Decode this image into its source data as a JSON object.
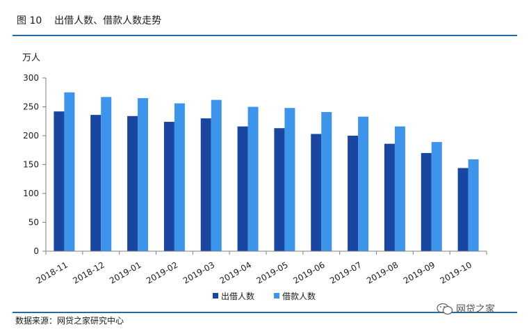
{
  "figure_title": "图 10    出借人数、借款人数走势",
  "source": "数据来源：网贷之家研究中心",
  "watermark": "网贷之家",
  "chart_data": {
    "type": "bar",
    "ylabel": "万人",
    "ylim": [
      0,
      300
    ],
    "yticks": [
      0,
      50,
      100,
      150,
      200,
      250,
      300
    ],
    "categories": [
      "2018-11",
      "2018-12",
      "2019-01",
      "2019-02",
      "2019-03",
      "2019-04",
      "2019-05",
      "2019-06",
      "2019-07",
      "2019-08",
      "2019-09",
      "2019-10"
    ],
    "series": [
      {
        "name": "出借人数",
        "color": "#1846a0",
        "values": [
          242,
          236,
          234,
          224,
          230,
          216,
          213,
          203,
          200,
          186,
          170,
          144
        ]
      },
      {
        "name": "借款人数",
        "color": "#3c95ea",
        "values": [
          275,
          267,
          265,
          256,
          262,
          250,
          248,
          241,
          233,
          216,
          189,
          159
        ]
      }
    ],
    "legend_position": "bottom",
    "grid": false
  }
}
